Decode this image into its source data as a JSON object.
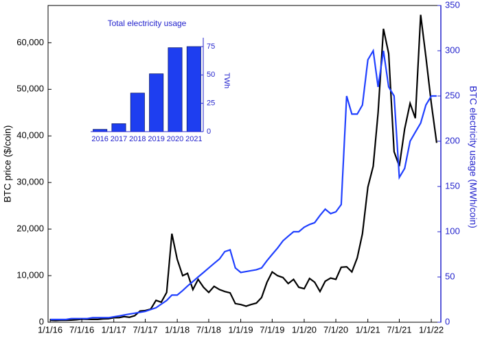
{
  "chart_data": [
    {
      "type": "line",
      "x": [
        "2016-01-01",
        "2016-02-01",
        "2016-03-01",
        "2016-04-01",
        "2016-05-01",
        "2016-06-01",
        "2016-07-01",
        "2016-08-01",
        "2016-09-01",
        "2016-10-01",
        "2016-11-01",
        "2016-12-01",
        "2017-01-01",
        "2017-02-01",
        "2017-03-01",
        "2017-04-01",
        "2017-05-01",
        "2017-06-01",
        "2017-07-01",
        "2017-08-01",
        "2017-09-01",
        "2017-10-01",
        "2017-11-01",
        "2017-12-01",
        "2018-01-01",
        "2018-02-01",
        "2018-03-01",
        "2018-04-01",
        "2018-05-01",
        "2018-06-01",
        "2018-07-01",
        "2018-08-01",
        "2018-09-01",
        "2018-10-01",
        "2018-11-01",
        "2018-12-01",
        "2019-01-01",
        "2019-02-01",
        "2019-03-01",
        "2019-04-01",
        "2019-05-01",
        "2019-06-01",
        "2019-07-01",
        "2019-08-01",
        "2019-09-01",
        "2019-10-01",
        "2019-11-01",
        "2019-12-01",
        "2020-01-01",
        "2020-02-01",
        "2020-03-01",
        "2020-04-01",
        "2020-05-01",
        "2020-06-01",
        "2020-07-01",
        "2020-08-01",
        "2020-09-01",
        "2020-10-01",
        "2020-11-01",
        "2020-12-01",
        "2021-01-01",
        "2021-02-01",
        "2021-03-01",
        "2021-04-01",
        "2021-05-01",
        "2021-06-01",
        "2021-07-01",
        "2021-08-01",
        "2021-09-01",
        "2021-10-01",
        "2021-11-01",
        "2021-12-01",
        "2022-01-01",
        "2022-02-01"
      ],
      "series": [
        {
          "name": "BTC price",
          "color": "#000000",
          "axis": "y",
          "values": [
            430,
            370,
            420,
            420,
            450,
            530,
            660,
            620,
            610,
            610,
            700,
            750,
            970,
            990,
            1200,
            1080,
            1400,
            2400,
            2500,
            2800,
            4700,
            4300,
            6400,
            19000,
            13500,
            10000,
            10500,
            7000,
            9200,
            7500,
            6400,
            7700,
            7000,
            6600,
            6300,
            4000,
            3800,
            3450,
            3800,
            4100,
            5300,
            8600,
            10800,
            10000,
            9600,
            8300,
            9200,
            7500,
            7200,
            9400,
            8600,
            6600,
            8800,
            9500,
            9200,
            11800,
            11900,
            10800,
            13800,
            19000,
            29000,
            33500,
            45000,
            63000,
            57700,
            36600,
            33500,
            41500,
            47000,
            43800,
            66000,
            57000,
            47000,
            38500
          ]
        },
        {
          "name": "BTC electricity usage",
          "color": "#1f3fff",
          "axis": "y2",
          "values": [
            3,
            3,
            3,
            3,
            4,
            4,
            4,
            4,
            5,
            5,
            5,
            5,
            6,
            7,
            8,
            9,
            10,
            11,
            12,
            14,
            16,
            20,
            24,
            30,
            30,
            35,
            40,
            45,
            50,
            55,
            60,
            65,
            70,
            78,
            80,
            60,
            55,
            56,
            57,
            58,
            60,
            68,
            75,
            82,
            90,
            95,
            100,
            100,
            105,
            108,
            110,
            118,
            125,
            120,
            122,
            130,
            250,
            230,
            230,
            240,
            290,
            300,
            260,
            300,
            260,
            250,
            160,
            170,
            200,
            210,
            220,
            240,
            250,
            250
          ]
        }
      ],
      "xlim": [
        "2015-12-20",
        "2022-02-25"
      ],
      "xticks": [
        {
          "value": "2016-01-01",
          "label": "1/1/16"
        },
        {
          "value": "2016-07-01",
          "label": "7/1/16"
        },
        {
          "value": "2017-01-01",
          "label": "1/1/17"
        },
        {
          "value": "2017-07-01",
          "label": "7/1/17"
        },
        {
          "value": "2018-01-01",
          "label": "1/1/18"
        },
        {
          "value": "2018-07-01",
          "label": "7/1/18"
        },
        {
          "value": "2019-01-01",
          "label": "1/1/19"
        },
        {
          "value": "2019-07-01",
          "label": "7/1/19"
        },
        {
          "value": "2020-01-01",
          "label": "1/1/20"
        },
        {
          "value": "2020-07-01",
          "label": "7/1/20"
        },
        {
          "value": "2021-01-01",
          "label": "1/1/21"
        },
        {
          "value": "2021-07-01",
          "label": "7/1/21"
        },
        {
          "value": "2022-01-01",
          "label": "1/1/22"
        }
      ],
      "ylim": [
        0,
        68000
      ],
      "yticks": [
        0,
        {
          "value": 10000,
          "label": "10,000"
        },
        {
          "value": 20000,
          "label": "20,000"
        },
        {
          "value": 30000,
          "label": "30,000"
        },
        {
          "value": 40000,
          "label": "40,000"
        },
        {
          "value": 50000,
          "label": "50,000"
        },
        {
          "value": 60000,
          "label": "60,000"
        }
      ],
      "y2lim": [
        0,
        350
      ],
      "y2ticks": [
        0,
        50,
        100,
        150,
        200,
        250,
        300,
        350
      ],
      "ylabel": "BTC price ($/coin)",
      "y2label": "BTC electricity usage (MWh/coin)",
      "y2color": "#2222cc"
    },
    {
      "type": "bar",
      "title": "Total electricity usage",
      "categories": [
        "2016",
        "2017",
        "2018",
        "2019",
        "2020",
        "2021"
      ],
      "values": [
        2,
        7,
        34,
        51,
        74,
        75
      ],
      "color": "#1e3ef0",
      "ylim": [
        0,
        78
      ],
      "yticks": [
        0,
        25,
        50,
        75
      ],
      "ylabel": "TWh",
      "y_axis_position": "right",
      "axis_color": "#2222cc"
    }
  ]
}
